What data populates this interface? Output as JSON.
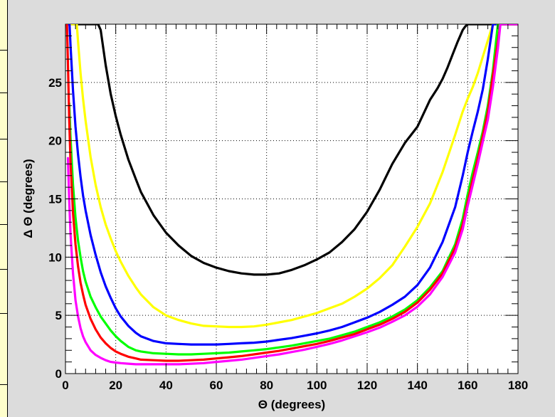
{
  "chart_data": {
    "type": "line",
    "title": "",
    "xlabel": "Θ (degrees)",
    "ylabel": "Δ Θ (degrees)",
    "xlim": [
      0,
      180
    ],
    "ylim": [
      0,
      30
    ],
    "grid": true,
    "xticks": [
      "0",
      "20",
      "40",
      "60",
      "80",
      "100",
      "120",
      "140",
      "160",
      "180"
    ],
    "yticks": [
      "0",
      "5",
      "10",
      "15",
      "20",
      "25"
    ],
    "series": [
      {
        "color": "#000000",
        "x": [
          13,
          14,
          16,
          18,
          20,
          22,
          25,
          28,
          30,
          35,
          40,
          45,
          50,
          55,
          60,
          65,
          70,
          75,
          80,
          85,
          90,
          95,
          100,
          105,
          110,
          115,
          120,
          125,
          130,
          135,
          140,
          145,
          148,
          150,
          152,
          154,
          156,
          158,
          159,
          160
        ],
        "y": [
          30,
          29.5,
          26.5,
          24.0,
          22.1,
          20.5,
          18.4,
          16.7,
          15.6,
          13.6,
          12.1,
          11.0,
          10.1,
          9.5,
          9.1,
          8.8,
          8.6,
          8.5,
          8.5,
          8.6,
          8.9,
          9.3,
          9.8,
          10.4,
          11.3,
          12.4,
          13.9,
          15.8,
          18.0,
          19.8,
          21.2,
          23.5,
          24.5,
          25.3,
          26.3,
          27.4,
          28.5,
          29.5,
          29.8,
          30
        ]
      },
      {
        "color": "#ffff00",
        "x": [
          4.5,
          5,
          6,
          7,
          8,
          10,
          12,
          14,
          16,
          18,
          20,
          22,
          25,
          28,
          30,
          35,
          40,
          45,
          50,
          55,
          60,
          65,
          70,
          75,
          80,
          85,
          90,
          95,
          100,
          105,
          110,
          115,
          120,
          125,
          130,
          135,
          140,
          145,
          150,
          155,
          158,
          160,
          162,
          164,
          166,
          168,
          170
        ],
        "y": [
          30,
          28.5,
          25.8,
          23.6,
          21.7,
          18.6,
          16.2,
          14.3,
          12.8,
          11.6,
          10.5,
          9.6,
          8.4,
          7.4,
          6.8,
          5.7,
          5.0,
          4.6,
          4.3,
          4.1,
          4.05,
          4.0,
          4.0,
          4.05,
          4.2,
          4.4,
          4.6,
          4.9,
          5.2,
          5.6,
          6.0,
          6.6,
          7.3,
          8.2,
          9.3,
          10.9,
          12.6,
          14.6,
          17.3,
          20.5,
          22.5,
          23.6,
          24.6,
          25.8,
          27.2,
          28.6,
          30
        ]
      },
      {
        "color": "#0000ff",
        "x": [
          1.6,
          2,
          3,
          4,
          5,
          6,
          7,
          8,
          10,
          12,
          14,
          16,
          18,
          20,
          22,
          25,
          28,
          30,
          35,
          40,
          45,
          50,
          55,
          60,
          65,
          70,
          75,
          80,
          85,
          90,
          95,
          100,
          105,
          110,
          115,
          120,
          125,
          130,
          135,
          140,
          145,
          150,
          155,
          158,
          160,
          162,
          164,
          166,
          168,
          170
        ],
        "y": [
          30,
          28.2,
          24.3,
          21.2,
          18.8,
          16.9,
          15.3,
          14.0,
          11.9,
          10.2,
          8.7,
          7.5,
          6.5,
          5.6,
          4.9,
          4.1,
          3.5,
          3.2,
          2.8,
          2.6,
          2.55,
          2.5,
          2.5,
          2.5,
          2.55,
          2.6,
          2.65,
          2.75,
          2.9,
          3.05,
          3.25,
          3.45,
          3.7,
          4.0,
          4.4,
          4.8,
          5.3,
          5.9,
          6.6,
          7.6,
          9.1,
          11.3,
          14.3,
          17.0,
          19.0,
          20.8,
          22.5,
          24.4,
          27.0,
          30
        ]
      },
      {
        "color": "#00ff00",
        "x": [
          1.5,
          2,
          3,
          4,
          5,
          6,
          7,
          8,
          10,
          12,
          14,
          16,
          18,
          20,
          22,
          25,
          28,
          30,
          35,
          40,
          45,
          50,
          55,
          60,
          65,
          70,
          75,
          80,
          85,
          90,
          95,
          100,
          105,
          110,
          115,
          120,
          125,
          130,
          135,
          140,
          145,
          150,
          155,
          158,
          160,
          162,
          164,
          166,
          168,
          170,
          172
        ],
        "y": [
          23.2,
          20.3,
          16.2,
          13.4,
          11.4,
          10.0,
          8.8,
          7.9,
          6.6,
          5.7,
          4.9,
          4.3,
          3.7,
          3.2,
          2.8,
          2.3,
          2.0,
          1.9,
          1.75,
          1.7,
          1.65,
          1.65,
          1.7,
          1.75,
          1.8,
          1.9,
          2.0,
          2.1,
          2.25,
          2.4,
          2.6,
          2.8,
          3.0,
          3.3,
          3.6,
          4.0,
          4.4,
          4.9,
          5.5,
          6.3,
          7.4,
          8.8,
          11.1,
          13.3,
          15.4,
          17.3,
          19.0,
          20.8,
          23.0,
          26.0,
          30
        ]
      },
      {
        "color": "#ff0000",
        "x": [
          0.6,
          1,
          1.5,
          2,
          3,
          4,
          5,
          6,
          7,
          8,
          10,
          12,
          14,
          16,
          18,
          20,
          22,
          25,
          28,
          30,
          35,
          40,
          45,
          50,
          55,
          60,
          65,
          70,
          75,
          80,
          85,
          90,
          95,
          100,
          105,
          110,
          115,
          120,
          125,
          130,
          135,
          140,
          145,
          150,
          155,
          158,
          160,
          162,
          164,
          166,
          168,
          170,
          172,
          173
        ],
        "y": [
          30,
          26.6,
          21.7,
          18.2,
          13.8,
          11.1,
          9.2,
          7.8,
          6.8,
          5.9,
          4.7,
          3.8,
          3.1,
          2.6,
          2.2,
          1.9,
          1.7,
          1.45,
          1.3,
          1.2,
          1.15,
          1.1,
          1.1,
          1.15,
          1.2,
          1.3,
          1.4,
          1.5,
          1.65,
          1.8,
          1.95,
          2.15,
          2.35,
          2.55,
          2.8,
          3.1,
          3.4,
          3.8,
          4.2,
          4.7,
          5.3,
          6.1,
          7.2,
          8.6,
          10.8,
          12.8,
          14.8,
          16.7,
          18.5,
          20.4,
          22.5,
          25.6,
          28.5,
          30
        ]
      },
      {
        "color": "#ff00ff",
        "x": [
          1,
          1.5,
          2,
          3,
          4,
          5,
          6,
          7,
          8,
          10,
          12,
          14,
          16,
          18,
          20,
          22,
          25,
          28,
          30,
          35,
          40,
          45,
          50,
          55,
          60,
          65,
          70,
          75,
          80,
          85,
          90,
          95,
          100,
          105,
          110,
          115,
          120,
          125,
          130,
          135,
          140,
          145,
          150,
          155,
          158,
          160,
          162,
          164,
          166,
          168,
          170,
          172,
          173
        ],
        "y": [
          18.5,
          14.8,
          12.0,
          8.6,
          6.3,
          4.9,
          3.9,
          3.2,
          2.7,
          2.0,
          1.6,
          1.35,
          1.15,
          1.0,
          0.95,
          0.9,
          0.85,
          0.8,
          0.8,
          0.8,
          0.8,
          0.8,
          0.85,
          0.9,
          1.0,
          1.1,
          1.2,
          1.35,
          1.5,
          1.65,
          1.85,
          2.05,
          2.3,
          2.55,
          2.85,
          3.2,
          3.55,
          3.95,
          4.45,
          5.0,
          5.75,
          6.8,
          8.3,
          10.4,
          12.4,
          14.4,
          16.2,
          18.0,
          19.9,
          21.8,
          24.6,
          27.9,
          30
        ]
      }
    ]
  }
}
